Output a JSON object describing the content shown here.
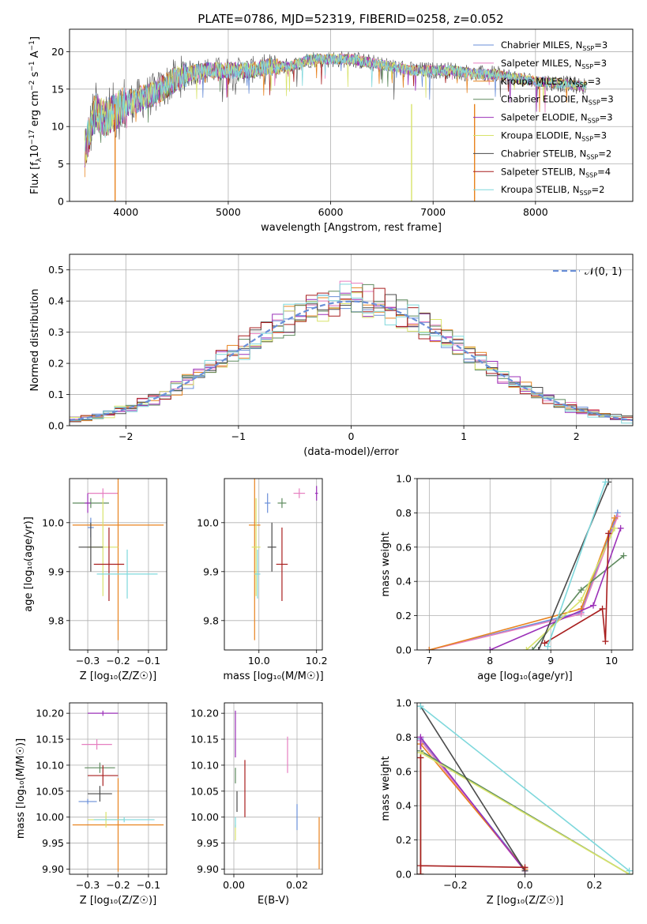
{
  "colors": {
    "chabrier_miles": "#6a8fd8",
    "salpeter_miles": "#e67fc0",
    "kroupa_miles": "#e8831f",
    "chabrier_elodie": "#5e8a5e",
    "salpeter_elodie": "#9b30b8",
    "kroupa_elodie": "#d8e36a",
    "chabrier_stelib": "#4a4a4a",
    "salpeter_stelib": "#a81f1f",
    "kroupa_stelib": "#7fd8dc",
    "grid": "#b0b0b0"
  },
  "legend_entries": [
    {
      "key": "chabrier_miles",
      "pre": "Chabrier MILES, N",
      "sub": "SSP",
      "post": "=3"
    },
    {
      "key": "salpeter_miles",
      "pre": "Salpeter MILES, N",
      "sub": "SSP",
      "post": "=3"
    },
    {
      "key": "kroupa_miles",
      "pre": "Kroupa MILES, N",
      "sub": "SSP",
      "post": "=3"
    },
    {
      "key": "chabrier_elodie",
      "pre": "Chabrier ELODIE, N",
      "sub": "SSP",
      "post": "=3"
    },
    {
      "key": "salpeter_elodie",
      "pre": "Salpeter ELODIE, N",
      "sub": "SSP",
      "post": "=3"
    },
    {
      "key": "kroupa_elodie",
      "pre": "Kroupa ELODIE, N",
      "sub": "SSP",
      "post": "=3"
    },
    {
      "key": "chabrier_stelib",
      "pre": "Chabrier STELIB, N",
      "sub": "SSP",
      "post": "=2"
    },
    {
      "key": "salpeter_stelib",
      "pre": "Salpeter STELIB, N",
      "sub": "SSP",
      "post": "=4"
    },
    {
      "key": "kroupa_stelib",
      "pre": "Kroupa STELIB, N",
      "sub": "SSP",
      "post": "=2"
    }
  ],
  "chart_data": [
    {
      "type": "line",
      "title": "PLATE=0786, MJD=52319, FIBERID=0258, z=0.052",
      "xlabel": "wavelength [Angstrom, rest frame]",
      "ylabel_parts": {
        "pre": "Flux [f",
        "sub": "λ",
        "mid": "10",
        "sup1": "−17",
        "post": " erg cm",
        "sup2": "−2",
        "post2": " s",
        "sup3": "−1",
        "post3": " A",
        "sup4": "−1",
        "end": "]"
      },
      "xlim": [
        3450,
        8950
      ],
      "ylim": [
        0,
        23
      ],
      "xticks": [
        4000,
        5000,
        6000,
        7000,
        8000
      ],
      "yticks": [
        0,
        5,
        10,
        15,
        20
      ],
      "spectrum_envelope": [
        [
          3600,
          7
        ],
        [
          3700,
          12
        ],
        [
          3800,
          11
        ],
        [
          3900,
          12
        ],
        [
          4000,
          13
        ],
        [
          4100,
          13.5
        ],
        [
          4200,
          14
        ],
        [
          4300,
          14.5
        ],
        [
          4400,
          15.5
        ],
        [
          4500,
          16.5
        ],
        [
          4600,
          17
        ],
        [
          4800,
          17.5
        ],
        [
          5000,
          17.5
        ],
        [
          5200,
          17.5
        ],
        [
          5400,
          18
        ],
        [
          5600,
          18
        ],
        [
          5800,
          19
        ],
        [
          6000,
          19
        ],
        [
          6200,
          19
        ],
        [
          6400,
          18.5
        ],
        [
          6600,
          18
        ],
        [
          6800,
          17.5
        ],
        [
          7000,
          17.5
        ],
        [
          7200,
          17.5
        ],
        [
          7400,
          17
        ],
        [
          7600,
          17
        ],
        [
          7800,
          16.5
        ],
        [
          8000,
          16
        ],
        [
          8200,
          15.8
        ],
        [
          8400,
          15.5
        ],
        [
          8500,
          15.3
        ]
      ],
      "spikes": [
        {
          "x": 3895,
          "series": "kroupa_miles"
        },
        {
          "x": 6790,
          "series": "kroupa_elodie"
        },
        {
          "x": 7405,
          "series": "kroupa_miles"
        }
      ]
    },
    {
      "type": "histogram",
      "xlabel": "(data-model)/error",
      "ylabel": "Normed distribution",
      "xlim": [
        -2.5,
        2.5
      ],
      "ylim": [
        0,
        0.55
      ],
      "xticks": [
        -2,
        -1,
        0,
        1,
        2
      ],
      "yticks": [
        0.0,
        0.1,
        0.2,
        0.3,
        0.4,
        0.5
      ],
      "bin_width": 0.1,
      "legend": "𝒩(0, 1)",
      "reference_curve": "normal(0,1)"
    },
    {
      "type": "scatter",
      "xlabel": "Z [log₁₀(Z/Z☉)]",
      "ylabel": "age  [log₁₀(age/yr)]",
      "xlim": [
        -0.36,
        -0.04
      ],
      "ylim": [
        9.74,
        10.09
      ],
      "xticks": [
        -0.3,
        -0.2,
        -0.1
      ],
      "yticks": [
        9.8,
        9.9,
        10.0
      ],
      "points": [
        {
          "series": "chabrier_miles",
          "x": -0.29,
          "y": 9.99,
          "xerr": 0.01,
          "yerr": 0.02
        },
        {
          "series": "salpeter_miles",
          "x": -0.25,
          "y": 10.06,
          "xerr": 0.05,
          "yerr": 0.01
        },
        {
          "series": "kroupa_miles",
          "x": -0.2,
          "y": 9.995,
          "xerr": 0.15,
          "yerr": 0.235
        },
        {
          "series": "chabrier_elodie",
          "x": -0.29,
          "y": 10.04,
          "xerr": 0.06,
          "yerr": 0.01
        },
        {
          "series": "salpeter_elodie",
          "x": -0.3,
          "y": 10.04,
          "xerr": 0.01,
          "yerr": 0.02
        },
        {
          "series": "kroupa_elodie",
          "x": -0.25,
          "y": 9.95,
          "xerr": 0.05,
          "yerr": 0.1
        },
        {
          "series": "chabrier_stelib",
          "x": -0.29,
          "y": 9.95,
          "xerr": 0.04,
          "yerr": 0.05
        },
        {
          "series": "salpeter_stelib",
          "x": -0.23,
          "y": 9.915,
          "xerr": 0.05,
          "yerr": 0.075
        },
        {
          "series": "kroupa_stelib",
          "x": -0.17,
          "y": 9.895,
          "xerr": 0.1,
          "yerr": 0.05
        }
      ]
    },
    {
      "type": "scatter",
      "xlabel": "mass [log₁₀(M/M☉)]",
      "ylabel": "",
      "xlim": [
        9.88,
        10.22
      ],
      "ylim": [
        9.74,
        10.09
      ],
      "xticks": [
        10.0,
        10.2
      ],
      "yticks": [
        9.8,
        9.9,
        10.0
      ],
      "points": [
        {
          "series": "chabrier_miles",
          "x": 10.03,
          "y": 10.04,
          "xerr": 0.01,
          "yerr": 0.02
        },
        {
          "series": "salpeter_miles",
          "x": 10.14,
          "y": 10.06,
          "xerr": 0.02,
          "yerr": 0.01
        },
        {
          "series": "kroupa_miles",
          "x": 9.985,
          "y": 9.995,
          "xerr": 0.02,
          "yerr": 0.235
        },
        {
          "series": "chabrier_elodie",
          "x": 10.08,
          "y": 10.04,
          "xerr": 0.015,
          "yerr": 0.01
        },
        {
          "series": "salpeter_elodie",
          "x": 10.2,
          "y": 10.06,
          "xerr": 0.005,
          "yerr": 0.015
        },
        {
          "series": "kroupa_elodie",
          "x": 9.99,
          "y": 9.95,
          "xerr": 0.015,
          "yerr": 0.1
        },
        {
          "series": "chabrier_stelib",
          "x": 10.045,
          "y": 9.95,
          "xerr": 0.015,
          "yerr": 0.05
        },
        {
          "series": "salpeter_stelib",
          "x": 10.08,
          "y": 9.915,
          "xerr": 0.02,
          "yerr": 0.075
        },
        {
          "series": "kroupa_stelib",
          "x": 9.995,
          "y": 9.895,
          "xerr": 0.01,
          "yerr": 0.05
        }
      ]
    },
    {
      "type": "line",
      "xlabel": "age  [log₁₀(age/yr)]",
      "ylabel": "mass weight",
      "xlim": [
        6.8,
        10.35
      ],
      "ylim": [
        0.0,
        1.0
      ],
      "xticks": [
        7,
        8,
        9,
        10
      ],
      "yticks": [
        0.0,
        0.2,
        0.4,
        0.6,
        0.8,
        1.0
      ],
      "series": [
        {
          "key": "chabrier_miles",
          "points": [
            [
              7.0,
              0.0
            ],
            [
              9.5,
              0.22
            ],
            [
              10.1,
              0.8
            ]
          ]
        },
        {
          "key": "salpeter_miles",
          "points": [
            [
              7.0,
              0.0
            ],
            [
              9.5,
              0.21
            ],
            [
              10.1,
              0.78
            ]
          ]
        },
        {
          "key": "kroupa_miles",
          "points": [
            [
              7.0,
              0.0
            ],
            [
              9.5,
              0.24
            ],
            [
              10.05,
              0.77
            ]
          ]
        },
        {
          "key": "chabrier_elodie",
          "points": [
            [
              8.7,
              0.0
            ],
            [
              9.5,
              0.35
            ],
            [
              10.2,
              0.55
            ]
          ]
        },
        {
          "key": "salpeter_elodie",
          "points": [
            [
              8.0,
              0.0
            ],
            [
              9.7,
              0.26
            ],
            [
              10.15,
              0.71
            ]
          ]
        },
        {
          "key": "kroupa_elodie",
          "points": [
            [
              8.6,
              0.0
            ],
            [
              9.5,
              0.29
            ],
            [
              10.05,
              0.71
            ]
          ]
        },
        {
          "key": "chabrier_stelib",
          "points": [
            [
              8.8,
              0.0
            ],
            [
              9.95,
              0.98
            ]
          ]
        },
        {
          "key": "salpeter_stelib",
          "points": [
            [
              8.9,
              0.04
            ],
            [
              9.85,
              0.24
            ],
            [
              9.9,
              0.05
            ],
            [
              9.95,
              0.68
            ]
          ]
        },
        {
          "key": "kroupa_stelib",
          "points": [
            [
              8.95,
              0.02
            ],
            [
              9.9,
              0.98
            ]
          ]
        }
      ]
    },
    {
      "type": "scatter",
      "xlabel": "Z [log₁₀(Z/Z☉)]",
      "ylabel": "mass [log₁₀(M/M☉)]",
      "xlim": [
        -0.36,
        -0.04
      ],
      "ylim": [
        9.89,
        10.22
      ],
      "xticks": [
        -0.3,
        -0.2,
        -0.1
      ],
      "yticks": [
        9.9,
        9.95,
        10.0,
        10.05,
        10.1,
        10.15,
        10.2
      ],
      "points": [
        {
          "series": "chabrier_miles",
          "x": -0.3,
          "y": 10.03,
          "xerr": 0.03,
          "yerr": 0.005
        },
        {
          "series": "salpeter_miles",
          "x": -0.27,
          "y": 10.14,
          "xerr": 0.05,
          "yerr": 0.01
        },
        {
          "series": "kroupa_miles",
          "x": -0.2,
          "y": 9.985,
          "xerr": 0.15,
          "yerr": 0.09
        },
        {
          "series": "chabrier_elodie",
          "x": -0.26,
          "y": 10.095,
          "xerr": 0.05,
          "yerr": 0.01
        },
        {
          "series": "salpeter_elodie",
          "x": -0.25,
          "y": 10.2,
          "xerr": 0.05,
          "yerr": 0.005
        },
        {
          "series": "kroupa_elodie",
          "x": -0.24,
          "y": 9.995,
          "xerr": 0.06,
          "yerr": 0.015
        },
        {
          "series": "chabrier_stelib",
          "x": -0.26,
          "y": 10.045,
          "xerr": 0.04,
          "yerr": 0.015
        },
        {
          "series": "salpeter_stelib",
          "x": -0.25,
          "y": 10.08,
          "xerr": 0.05,
          "yerr": 0.02
        },
        {
          "series": "kroupa_stelib",
          "x": -0.18,
          "y": 9.995,
          "xerr": 0.1,
          "yerr": 0.005
        }
      ]
    },
    {
      "type": "scatter",
      "xlabel": "E(B-V)",
      "ylabel": "",
      "xlim": [
        -0.003,
        0.028
      ],
      "ylim": [
        9.89,
        10.22
      ],
      "xticks": [
        0.0,
        0.02
      ],
      "yticks": [
        9.9,
        9.95,
        10.0,
        10.05,
        10.1,
        10.15,
        10.2
      ],
      "points": [
        {
          "series": "chabrier_miles",
          "x": 0.02,
          "y": 10.0,
          "xerr": 0.0,
          "yerr": 0.025
        },
        {
          "series": "salpeter_miles",
          "x": 0.017,
          "y": 10.12,
          "xerr": 0.0,
          "yerr": 0.035
        },
        {
          "series": "kroupa_miles",
          "x": 0.027,
          "y": 9.95,
          "xerr": 0.0,
          "yerr": 0.05
        },
        {
          "series": "chabrier_elodie",
          "x": 0.0005,
          "y": 10.08,
          "xerr": 0.0,
          "yerr": 0.015
        },
        {
          "series": "salpeter_elodie",
          "x": 0.0005,
          "y": 10.16,
          "xerr": 0.0,
          "yerr": 0.045
        },
        {
          "series": "kroupa_elodie",
          "x": 0.0005,
          "y": 9.97,
          "xerr": 0.0,
          "yerr": 0.015
        },
        {
          "series": "chabrier_stelib",
          "x": 0.001,
          "y": 10.03,
          "xerr": 0.0,
          "yerr": 0.02
        },
        {
          "series": "salpeter_stelib",
          "x": 0.0035,
          "y": 10.055,
          "xerr": 0.0,
          "yerr": 0.055
        },
        {
          "series": "kroupa_stelib",
          "x": 0.0005,
          "y": 9.99,
          "xerr": 0.0,
          "yerr": 0.01
        }
      ]
    },
    {
      "type": "line",
      "xlabel": "Z [log₁₀(Z/Z☉)]",
      "ylabel": "mass weight",
      "xlim": [
        -0.31,
        0.31
      ],
      "ylim": [
        0.0,
        1.0
      ],
      "xticks": [
        -0.2,
        0.0,
        0.2
      ],
      "yticks": [
        0.0,
        0.2,
        0.4,
        0.6,
        0.8,
        1.0
      ],
      "series": [
        {
          "key": "chabrier_miles",
          "points": [
            [
              -0.3,
              0.0
            ],
            [
              -0.3,
              0.79
            ],
            [
              0.0,
              0.03
            ]
          ]
        },
        {
          "key": "salpeter_miles",
          "points": [
            [
              -0.3,
              0.0
            ],
            [
              -0.3,
              0.78
            ],
            [
              0.0,
              0.02
            ]
          ]
        },
        {
          "key": "kroupa_miles",
          "points": [
            [
              -0.3,
              0.0
            ],
            [
              -0.3,
              0.76
            ],
            [
              0.0,
              0.03
            ]
          ]
        },
        {
          "key": "chabrier_elodie",
          "points": [
            [
              -0.3,
              0.0
            ],
            [
              -0.3,
              0.72
            ],
            [
              0.3,
              0.0
            ]
          ]
        },
        {
          "key": "salpeter_elodie",
          "points": [
            [
              -0.3,
              0.0
            ],
            [
              -0.3,
              0.8
            ],
            [
              0.0,
              0.02
            ]
          ]
        },
        {
          "key": "kroupa_elodie",
          "points": [
            [
              -0.3,
              0.0
            ],
            [
              -0.3,
              0.71
            ],
            [
              0.3,
              0.0
            ]
          ]
        },
        {
          "key": "chabrier_stelib",
          "points": [
            [
              -0.3,
              0.98
            ],
            [
              0.0,
              0.02
            ]
          ]
        },
        {
          "key": "salpeter_stelib",
          "points": [
            [
              -0.3,
              0.0
            ],
            [
              -0.3,
              0.68
            ],
            [
              -0.3,
              0.05
            ],
            [
              0.0,
              0.04
            ]
          ]
        },
        {
          "key": "kroupa_stelib",
          "points": [
            [
              -0.3,
              0.98
            ],
            [
              0.3,
              0.02
            ]
          ]
        }
      ]
    }
  ]
}
